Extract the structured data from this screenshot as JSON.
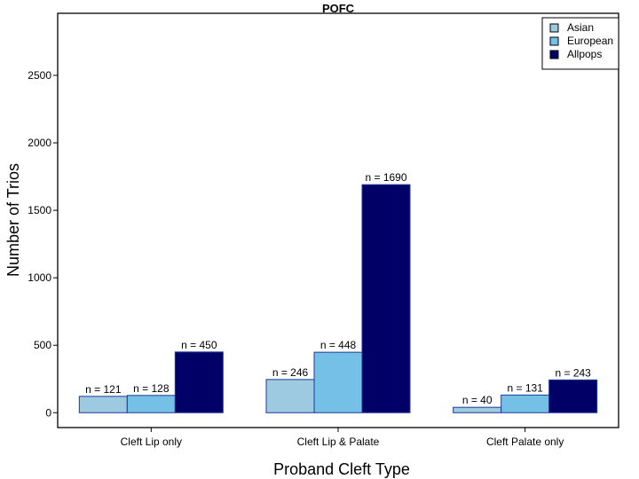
{
  "chart_data": {
    "type": "bar",
    "title": "POFC",
    "xlabel": "Proband Cleft Type",
    "ylabel": "Number of Trios",
    "categories": [
      "Cleft Lip only",
      "Cleft Lip & Palate",
      "Cleft Palate only"
    ],
    "series": [
      {
        "name": "Asian",
        "values": [
          121,
          246,
          40
        ],
        "labels": [
          "n =  121",
          "n =  246",
          "n =  40"
        ],
        "color": "#9ecae1"
      },
      {
        "name": "European",
        "values": [
          128,
          448,
          131
        ],
        "labels": [
          "n =  128",
          "n =  448",
          "n =  131"
        ],
        "color": "#74c0e6"
      },
      {
        "name": "Allpops",
        "values": [
          450,
          1690,
          243
        ],
        "labels": [
          "n =  450",
          "n =  1690",
          "n =  243"
        ],
        "color": "#000066"
      }
    ],
    "bar_border_color": "#1f3a93",
    "ylim": [
      -110,
      2960
    ],
    "yticks": [
      0,
      500,
      1000,
      1500,
      2000,
      2500
    ],
    "ytick_labels": [
      "0",
      "500",
      "1000",
      "1500",
      "2000",
      "2500"
    ],
    "grid": false,
    "legend_position": "top-right"
  }
}
